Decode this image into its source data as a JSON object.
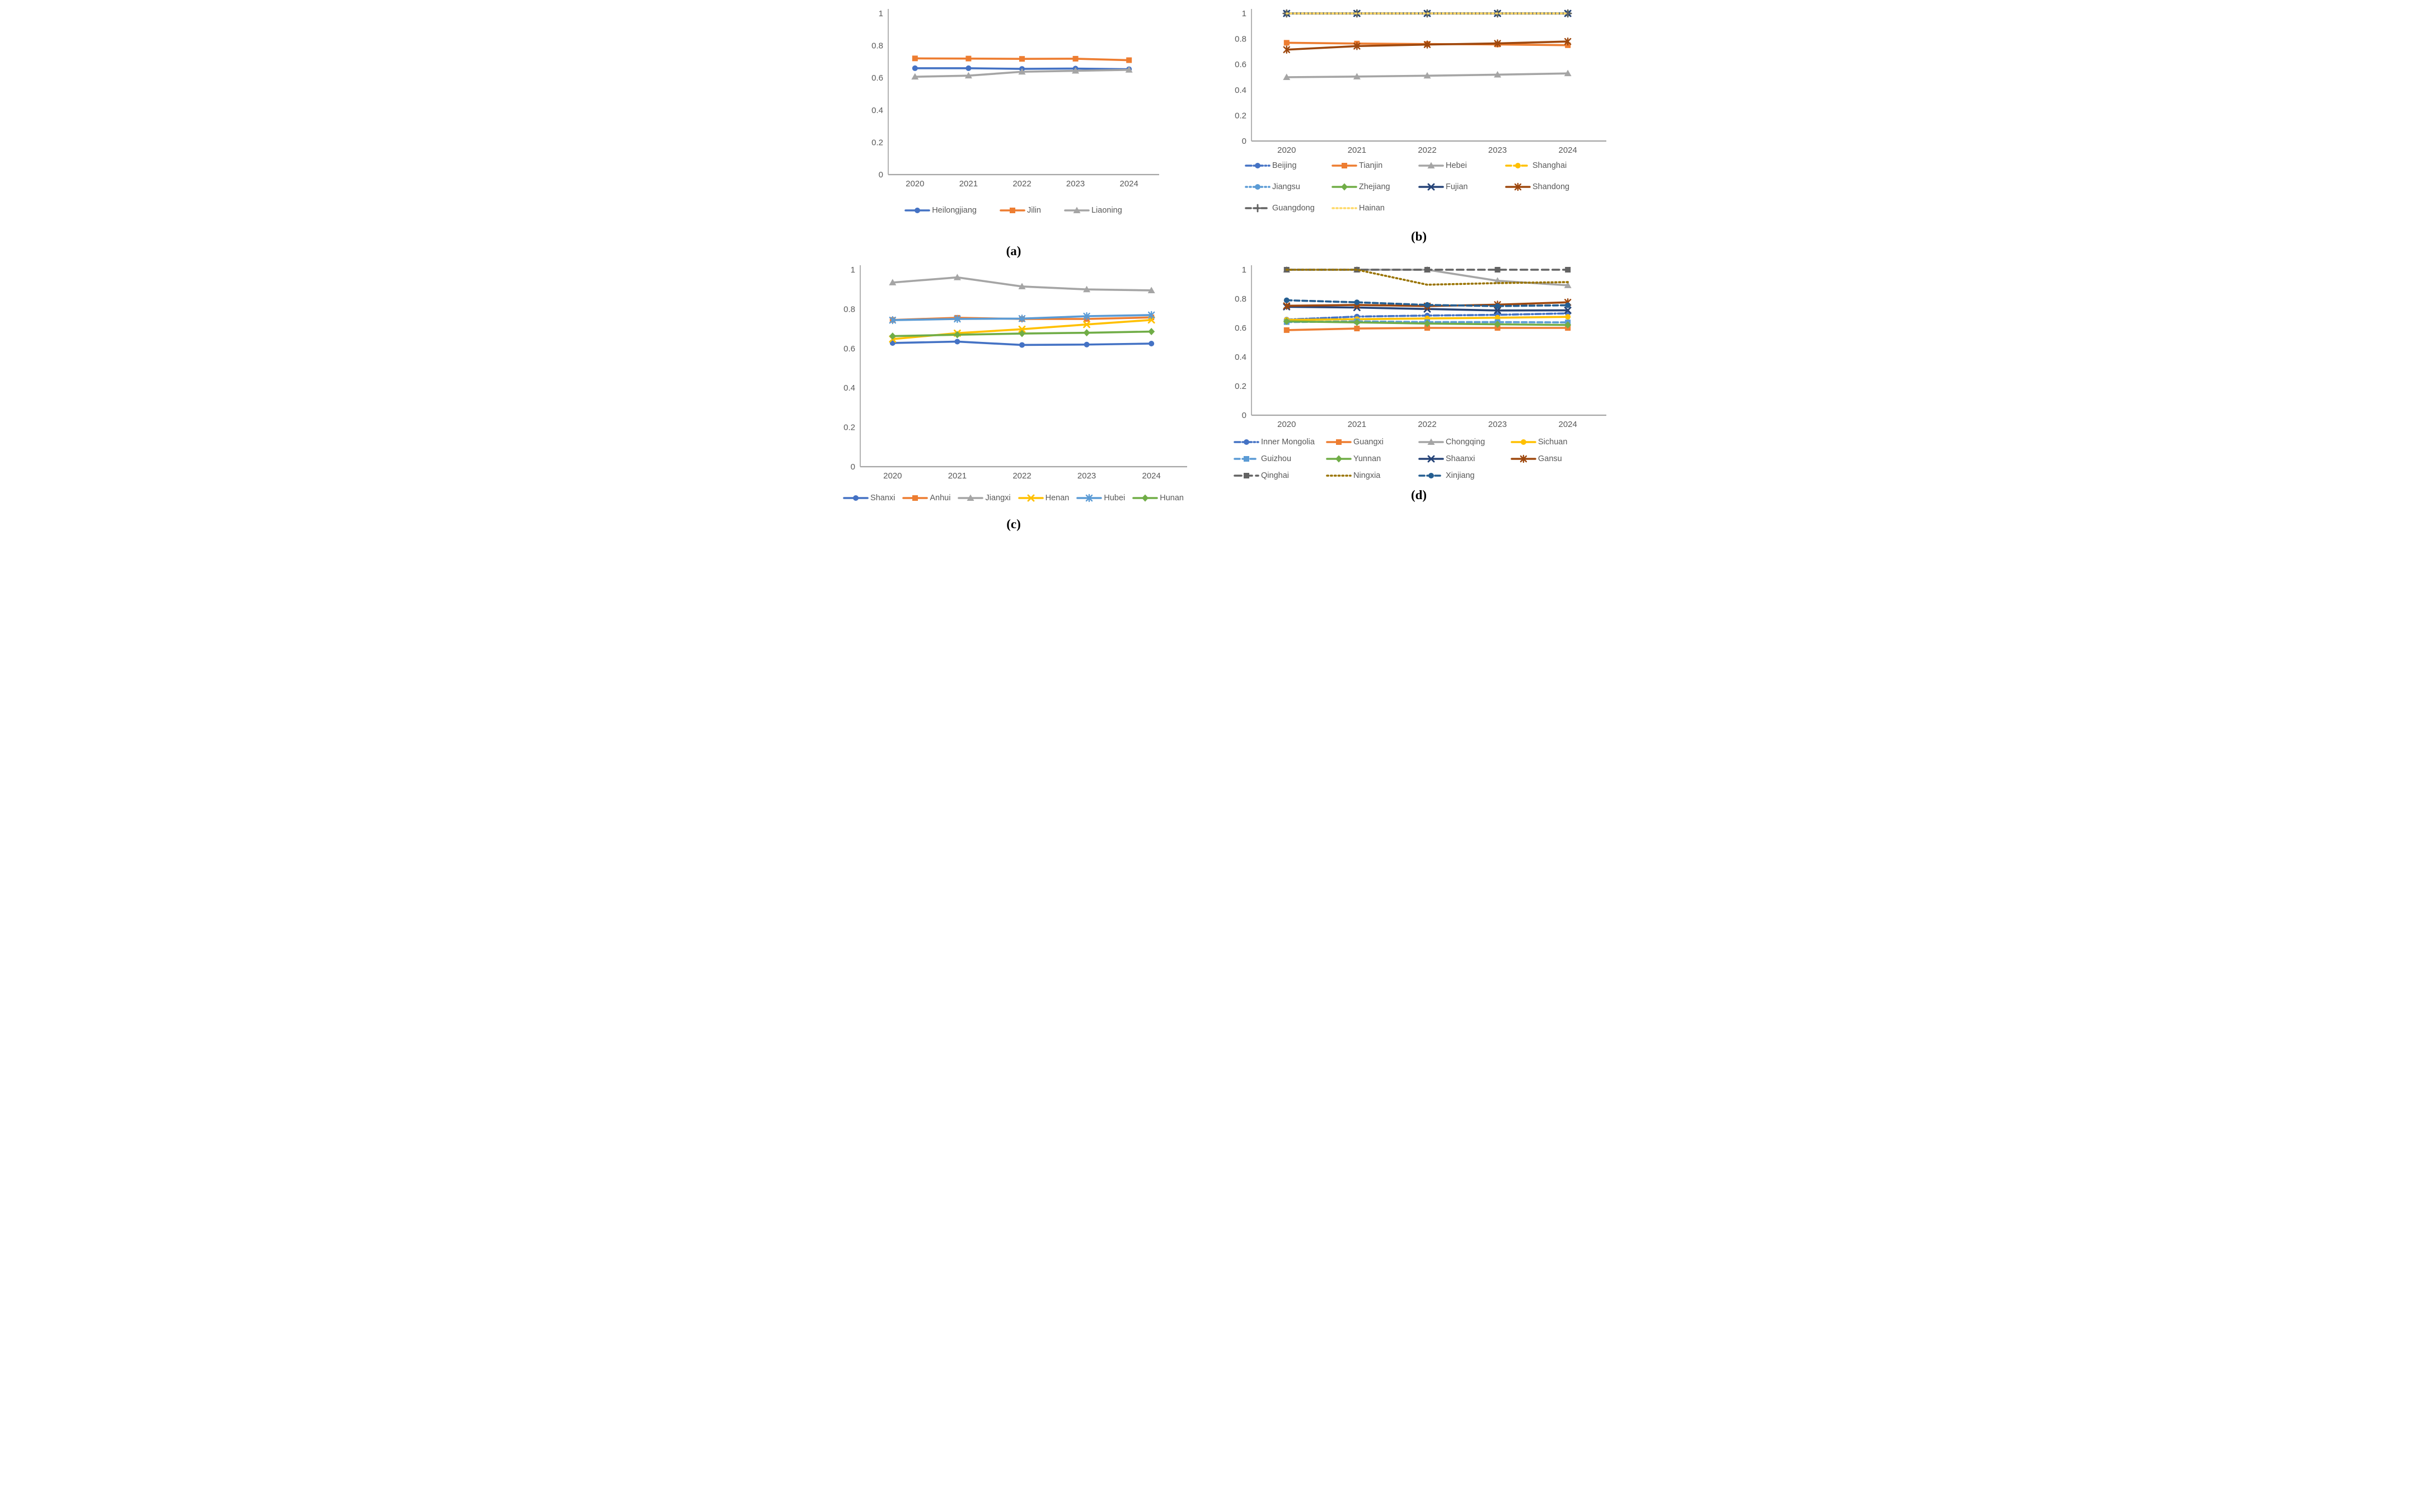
{
  "chart_data": [
    {
      "id": "a",
      "caption": "(a)",
      "type": "line",
      "x_labels": [
        "2020",
        "2021",
        "2022",
        "2023",
        "2024"
      ],
      "ylim": [
        0,
        1
      ],
      "yticks": [
        {
          "v": 0,
          "label": "0"
        },
        {
          "v": 0.2,
          "label": "0.2"
        },
        {
          "v": 0.4,
          "label": "0.4"
        },
        {
          "v": 0.6,
          "label": "0.6"
        },
        {
          "v": 0.8,
          "label": "0.8"
        },
        {
          "v": 1,
          "label": "1"
        }
      ],
      "axis_color": "#A6A6A6",
      "tick_label_color": "#595959",
      "grid": false,
      "legend_position": "bottom",
      "legend_rows": [
        [
          "Heilongjiang",
          "Jilin",
          "Liaoning"
        ]
      ],
      "series": [
        {
          "name": "Heilongjiang",
          "color": "#4472C4",
          "dash": "solid",
          "marker": "circle",
          "values": [
            0.66,
            0.66,
            0.656,
            0.658,
            0.654
          ]
        },
        {
          "name": "Jilin",
          "color": "#ED7D31",
          "dash": "solid",
          "marker": "square",
          "values": [
            0.721,
            0.72,
            0.718,
            0.719,
            0.71
          ]
        },
        {
          "name": "Liaoning",
          "color": "#A5A5A5",
          "dash": "solid",
          "marker": "triangle",
          "values": [
            0.607,
            0.614,
            0.638,
            0.644,
            0.65
          ]
        }
      ]
    },
    {
      "id": "b",
      "caption": "(b)",
      "type": "line",
      "x_labels": [
        "2020",
        "2021",
        "2022",
        "2023",
        "2024"
      ],
      "ylim": [
        0,
        1
      ],
      "yticks": [
        {
          "v": 0,
          "label": "0"
        },
        {
          "v": 0.2,
          "label": "0.2"
        },
        {
          "v": 0.4,
          "label": "0.4"
        },
        {
          "v": 0.6,
          "label": "0.6"
        },
        {
          "v": 0.8,
          "label": "0.8"
        },
        {
          "v": 1,
          "label": "1"
        }
      ],
      "axis_color": "#A6A6A6",
      "tick_label_color": "#595959",
      "grid": false,
      "legend_position": "bottom",
      "legend_rows": [
        [
          "Beijing",
          "Tianjin",
          "Hebei",
          "Shanghai"
        ],
        [
          "Jiangsu",
          "Zhejiang",
          "Fujian",
          "Shandong"
        ],
        [
          "Guangdong",
          "Hainan"
        ]
      ],
      "series": [
        {
          "name": "Beijing",
          "color": "#4472C4",
          "dash": "dashdot",
          "marker": "circle",
          "values": [
            1,
            1,
            1,
            1,
            1
          ]
        },
        {
          "name": "Tianjin",
          "color": "#ED7D31",
          "dash": "solid",
          "marker": "square",
          "values": [
            0.77,
            0.764,
            0.76,
            0.757,
            0.751
          ]
        },
        {
          "name": "Hebei",
          "color": "#A5A5A5",
          "dash": "solid",
          "marker": "triangle",
          "values": [
            0.5,
            0.505,
            0.512,
            0.52,
            0.53
          ]
        },
        {
          "name": "Shanghai",
          "color": "#FFC000",
          "dash": "dash",
          "marker": "circle",
          "values": [
            1,
            1,
            1,
            1,
            1
          ]
        },
        {
          "name": "Jiangsu",
          "color": "#5B9BD5",
          "dash": "dot",
          "marker": "circle",
          "values": [
            1,
            1,
            1,
            1,
            1
          ]
        },
        {
          "name": "Zhejiang",
          "color": "#70AD47",
          "dash": "solid",
          "marker": "diamond",
          "values": [
            1,
            1,
            1,
            1,
            1
          ]
        },
        {
          "name": "Fujian",
          "color": "#264478",
          "dash": "solid",
          "marker": "x",
          "values": [
            1,
            1,
            1,
            1,
            1
          ]
        },
        {
          "name": "Shandong",
          "color": "#9E480E",
          "dash": "solid",
          "marker": "star",
          "values": [
            0.716,
            0.744,
            0.756,
            0.765,
            0.78
          ]
        },
        {
          "name": "Guangdong",
          "color": "#636363",
          "dash": "dash",
          "marker": "plus",
          "values": [
            1,
            1,
            1,
            1,
            1
          ]
        },
        {
          "name": "Hainan",
          "color": "#FFD966",
          "dash": "dot",
          "marker": "none",
          "values": [
            1,
            1,
            1,
            1,
            1
          ]
        }
      ]
    },
    {
      "id": "c",
      "caption": "(c)",
      "type": "line",
      "x_labels": [
        "2020",
        "2021",
        "2022",
        "2023",
        "2024"
      ],
      "ylim": [
        0,
        1
      ],
      "yticks": [
        {
          "v": 0,
          "label": "0"
        },
        {
          "v": 0.2,
          "label": "0.2"
        },
        {
          "v": 0.4,
          "label": "0.4"
        },
        {
          "v": 0.6,
          "label": "0.6"
        },
        {
          "v": 0.8,
          "label": "0.8"
        },
        {
          "v": 1,
          "label": "1"
        }
      ],
      "axis_color": "#A6A6A6",
      "tick_label_color": "#595959",
      "grid": false,
      "legend_position": "bottom",
      "legend_rows": [
        [
          "Shanxi",
          "Anhui",
          "Jiangxi",
          "Henan",
          "Hubei",
          "Hunan"
        ]
      ],
      "series": [
        {
          "name": "Shanxi",
          "color": "#4472C4",
          "dash": "solid",
          "marker": "circle",
          "values": [
            0.628,
            0.635,
            0.618,
            0.62,
            0.625
          ]
        },
        {
          "name": "Anhui",
          "color": "#ED7D31",
          "dash": "solid",
          "marker": "square",
          "values": [
            0.745,
            0.756,
            0.75,
            0.75,
            0.758
          ]
        },
        {
          "name": "Jiangxi",
          "color": "#A5A5A5",
          "dash": "solid",
          "marker": "triangle",
          "values": [
            0.935,
            0.961,
            0.915,
            0.9,
            0.895
          ]
        },
        {
          "name": "Henan",
          "color": "#FFC000",
          "dash": "solid",
          "marker": "x",
          "values": [
            0.648,
            0.678,
            0.698,
            0.722,
            0.745
          ]
        },
        {
          "name": "Hubei",
          "color": "#5B9BD5",
          "dash": "solid",
          "marker": "star",
          "values": [
            0.744,
            0.75,
            0.752,
            0.764,
            0.77
          ]
        },
        {
          "name": "Hunan",
          "color": "#70AD47",
          "dash": "solid",
          "marker": "diamond",
          "values": [
            0.663,
            0.67,
            0.676,
            0.68,
            0.686
          ]
        }
      ]
    },
    {
      "id": "d",
      "caption": "(d)",
      "type": "line",
      "x_labels": [
        "2020",
        "2021",
        "2022",
        "2023",
        "2024"
      ],
      "ylim": [
        0,
        1
      ],
      "yticks": [
        {
          "v": 0,
          "label": "0"
        },
        {
          "v": 0.2,
          "label": "0.2"
        },
        {
          "v": 0.4,
          "label": "0.4"
        },
        {
          "v": 0.6,
          "label": "0.6"
        },
        {
          "v": 0.8,
          "label": "0.8"
        },
        {
          "v": 1,
          "label": "1"
        }
      ],
      "axis_color": "#A6A6A6",
      "tick_label_color": "#595959",
      "grid": false,
      "legend_position": "bottom",
      "legend_rows": [
        [
          "Inner Mongolia",
          "Guangxi",
          "Chongqing",
          "Sichuan"
        ],
        [
          "Guizhou",
          "Yunnan",
          "Shaanxi",
          "Gansu"
        ],
        [
          "Qinghai",
          "Ningxia",
          "Xinjiang"
        ]
      ],
      "series": [
        {
          "name": "Inner Mongolia",
          "color": "#4472C4",
          "dash": "dashdot",
          "marker": "circle",
          "values": [
            0.657,
            0.678,
            0.685,
            0.69,
            0.7
          ]
        },
        {
          "name": "Guangxi",
          "color": "#ED7D31",
          "dash": "solid",
          "marker": "square",
          "values": [
            0.585,
            0.596,
            0.6,
            0.6,
            0.6
          ]
        },
        {
          "name": "Chongqing",
          "color": "#A5A5A5",
          "dash": "solid",
          "marker": "triangle",
          "values": [
            1.0,
            1.0,
            1.0,
            0.924,
            0.893
          ]
        },
        {
          "name": "Sichuan",
          "color": "#FFC000",
          "dash": "solid",
          "marker": "circle",
          "values": [
            0.655,
            0.66,
            0.665,
            0.67,
            0.676
          ]
        },
        {
          "name": "Guizhou",
          "color": "#5B9BD5",
          "dash": "dash",
          "marker": "square",
          "values": [
            0.64,
            0.645,
            0.64,
            0.64,
            0.638
          ]
        },
        {
          "name": "Yunnan",
          "color": "#70AD47",
          "dash": "solid",
          "marker": "diamond",
          "values": [
            0.645,
            0.638,
            0.63,
            0.625,
            0.62
          ]
        },
        {
          "name": "Shaanxi",
          "color": "#264478",
          "dash": "solid",
          "marker": "x",
          "values": [
            0.745,
            0.74,
            0.73,
            0.72,
            0.721
          ]
        },
        {
          "name": "Gansu",
          "color": "#9E480E",
          "dash": "solid",
          "marker": "star",
          "values": [
            0.752,
            0.758,
            0.75,
            0.76,
            0.776
          ]
        },
        {
          "name": "Qinghai",
          "color": "#636363",
          "dash": "longdash",
          "marker": "square",
          "values": [
            1,
            1,
            1,
            1,
            1
          ]
        },
        {
          "name": "Ningxia",
          "color": "#997300",
          "dash": "dot",
          "marker": "none",
          "values": [
            1.0,
            1.0,
            0.897,
            0.908,
            0.915
          ]
        },
        {
          "name": "Xinjiang",
          "color": "#255E91",
          "dash": "dash",
          "marker": "circle",
          "values": [
            0.79,
            0.776,
            0.758,
            0.75,
            0.756
          ]
        }
      ]
    }
  ]
}
